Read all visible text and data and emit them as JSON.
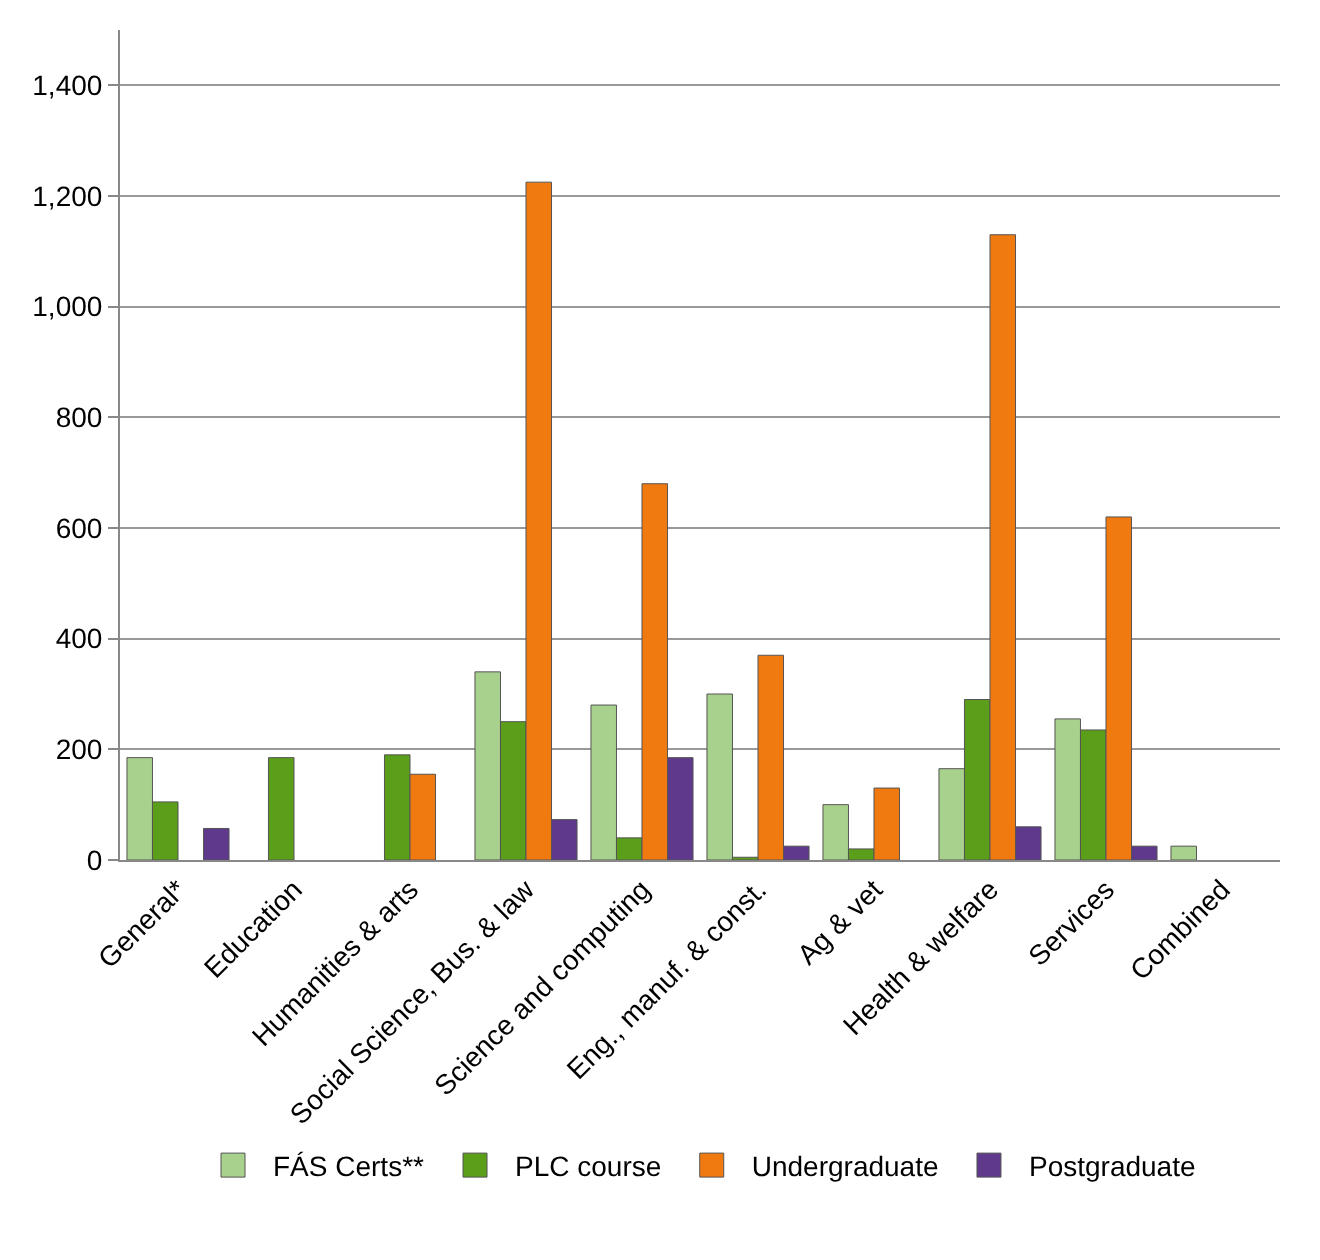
{
  "chart_data": {
    "type": "bar",
    "categories": [
      "General*",
      "Education",
      "Humanities & arts",
      "Social Science, Bus. & law",
      "Science and computing",
      "Eng., manuf. & const.",
      "Ag & vet",
      "Health & welfare",
      "Services",
      "Combined"
    ],
    "series": [
      {
        "name": "FÁS Certs**",
        "color": "#a9d18e",
        "values": [
          185,
          null,
          null,
          340,
          280,
          300,
          100,
          165,
          255,
          25
        ]
      },
      {
        "name": "PLC course",
        "color": "#5a9e1a",
        "values": [
          105,
          185,
          190,
          250,
          40,
          5,
          20,
          290,
          235,
          null
        ]
      },
      {
        "name": "Undergraduate",
        "color": "#f07a10",
        "values": [
          null,
          null,
          155,
          1225,
          680,
          370,
          130,
          1130,
          620,
          null
        ]
      },
      {
        "name": "Postgraduate",
        "color": "#5f3a8c",
        "values": [
          57,
          null,
          null,
          73,
          185,
          25,
          null,
          60,
          25,
          null
        ]
      }
    ],
    "ylim": [
      0,
      1500
    ],
    "yticks": [
      0,
      200,
      400,
      600,
      800,
      {
        "value": 1000,
        "label": "1,000"
      },
      {
        "value": 1200,
        "label": "1,200"
      },
      {
        "value": 1400,
        "label": "1,400"
      }
    ],
    "grid": "y",
    "legend": "bottom"
  }
}
